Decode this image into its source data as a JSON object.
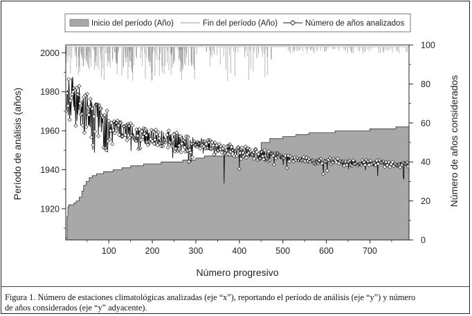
{
  "chart_data": {
    "type": "area",
    "title": "",
    "xlabel": "Número progresivo",
    "ylabel_left": "Período de análisis (años)",
    "ylabel_right": "Número de años considerados",
    "xlim": [
      1,
      790
    ],
    "ylim_left": [
      1904,
      2004
    ],
    "ylim_right": [
      0,
      100
    ],
    "x_ticks": [
      100,
      200,
      300,
      400,
      500,
      600,
      700
    ],
    "y_left_ticks": [
      1920,
      1940,
      1960,
      1980,
      2000
    ],
    "y_right_ticks": [
      0,
      20,
      40,
      60,
      80,
      100
    ],
    "grid": false,
    "legend_position": "top",
    "legend": [
      {
        "label": "Inicio del período (Año)",
        "symbol": "filled-area"
      },
      {
        "label": "Fin del período (Año)",
        "symbol": "thin-line"
      },
      {
        "label": "Número de años analizados",
        "symbol": "line-diamond"
      }
    ],
    "series": [
      {
        "name": "Inicio del período (Año)",
        "kind": "area",
        "axis": "left",
        "x": [
          1,
          4,
          6,
          8,
          12,
          20,
          25,
          32,
          38,
          42,
          48,
          55,
          62,
          72,
          88,
          110,
          130,
          150,
          180,
          220,
          270,
          300,
          320,
          360,
          400,
          440,
          450,
          470,
          500,
          530,
          560,
          620,
          700,
          760,
          790
        ],
        "y": [
          1905,
          1916,
          1921,
          1922,
          1922,
          1923,
          1924,
          1926,
          1929,
          1932,
          1934,
          1936,
          1937,
          1938,
          1939,
          1940,
          1941,
          1942,
          1943,
          1944,
          1945,
          1946,
          1947,
          1947,
          1948,
          1948,
          1954,
          1956,
          1957,
          1958,
          1959,
          1960,
          1961,
          1962,
          1964
        ]
      },
      {
        "name": "Fin del período (Año)",
        "kind": "line",
        "axis": "left",
        "x": [
          1,
          790
        ],
        "y": [
          2003,
          2003
        ],
        "dips_to_min_year": 1985
      },
      {
        "name": "Número de años analizados",
        "kind": "line-markers",
        "axis": "right",
        "x": [
          1,
          5,
          10,
          15,
          20,
          25,
          30,
          40,
          50,
          60,
          70,
          80,
          90,
          100,
          120,
          140,
          160,
          180,
          200,
          220,
          240,
          260,
          280,
          300,
          320,
          340,
          360,
          380,
          400,
          420,
          440,
          460,
          480,
          500,
          520,
          540,
          560,
          580,
          600,
          620,
          640,
          660,
          680,
          700,
          720,
          740,
          760,
          780,
          790
        ],
        "y": [
          62,
          78,
          81,
          82,
          80,
          79,
          78,
          75,
          72,
          70,
          68,
          66,
          64,
          63,
          62,
          61,
          60,
          59,
          58,
          57,
          56,
          55,
          54,
          53,
          52,
          51,
          50,
          49,
          48,
          48,
          47,
          46,
          45,
          44,
          43,
          43,
          42,
          42,
          42,
          42,
          41,
          41,
          41,
          41,
          41,
          40,
          40,
          40,
          40
        ],
        "min_value": 29
      }
    ]
  },
  "caption": {
    "line1": "Figura 1. Número de estaciones climatológicas analizadas (eje “x”), reportando el período de análisis (eje “y”)  y número",
    "line2": "de años considerados (eje “y” adyacente)."
  }
}
